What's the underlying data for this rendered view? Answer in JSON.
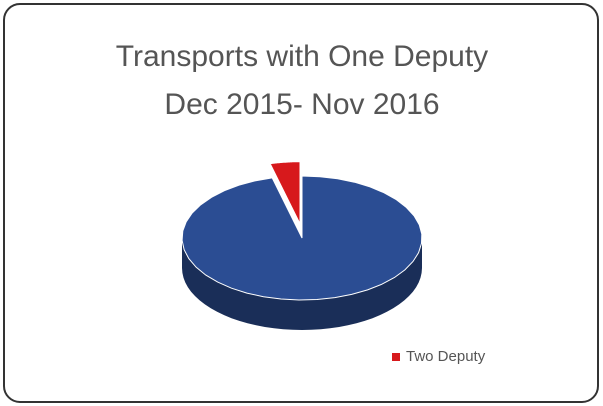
{
  "chart_data": {
    "type": "pie",
    "title": "Transports with One Deputy",
    "subtitle": "Dec 2015- Nov 2016",
    "categories": [
      null,
      "Two Deputy"
    ],
    "values": [
      96,
      4
    ],
    "colors": [
      "#2b4d93",
      "#d7191c"
    ],
    "legend": "bottom-right"
  }
}
